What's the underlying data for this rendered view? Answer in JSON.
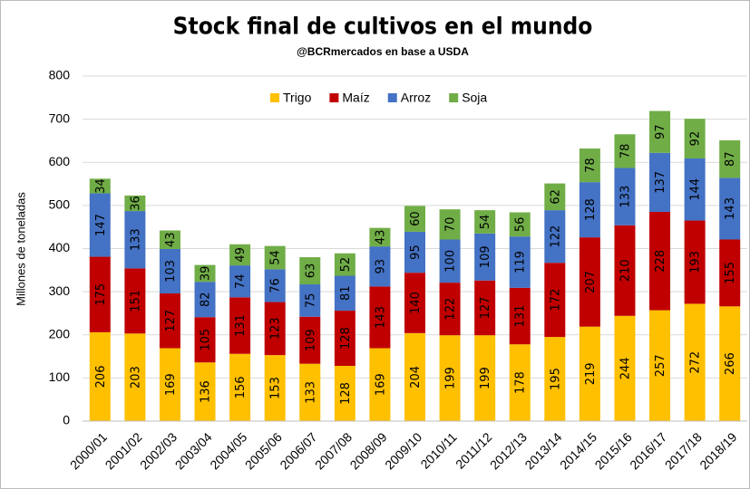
{
  "chart_data": {
    "type": "stacked_bar",
    "title": "Stock final de cultivos en el mundo",
    "subtitle": "@BCRmercados en base a USDA",
    "y_label": "Millones de toneladas",
    "categories": [
      "2000/01",
      "2001/02",
      "2002/03",
      "2003/04",
      "2004/05",
      "2005/06",
      "2006/07",
      "2007/08",
      "2008/09",
      "2009/10",
      "2010/11",
      "2011/12",
      "2012/13",
      "2013/14",
      "2014/15",
      "2015/16",
      "2016/17",
      "2017/18",
      "2018/19"
    ],
    "series": [
      {
        "name": "Trigo",
        "color": "#FFC000",
        "values": [
          206,
          203,
          169,
          136,
          156,
          153,
          133,
          128,
          169,
          204,
          199,
          199,
          178,
          195,
          219,
          244,
          257,
          272,
          266
        ]
      },
      {
        "name": "Maíz",
        "color": "#C00000",
        "values": [
          175,
          151,
          127,
          105,
          131,
          123,
          109,
          128,
          143,
          140,
          122,
          127,
          131,
          172,
          207,
          210,
          228,
          193,
          155
        ]
      },
      {
        "name": "Arroz",
        "color": "#4472C4",
        "values": [
          147,
          133,
          103,
          82,
          74,
          76,
          75,
          81,
          93,
          95,
          100,
          109,
          119,
          122,
          128,
          133,
          137,
          144,
          143
        ]
      },
      {
        "name": "Soja",
        "color": "#70AD47",
        "values": [
          34,
          36,
          43,
          39,
          49,
          54,
          63,
          52,
          43,
          60,
          70,
          54,
          56,
          62,
          78,
          78,
          97,
          92,
          87
        ]
      }
    ],
    "ylim": [
      0,
      800
    ],
    "yticks": [
      0,
      100,
      200,
      300,
      400,
      500,
      600,
      700,
      800
    ],
    "grid": true,
    "legend": "top"
  }
}
